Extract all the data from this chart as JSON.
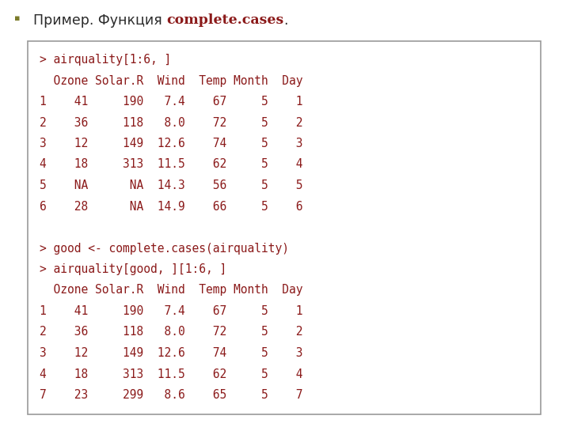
{
  "title_normal": "Пример. Функция ",
  "title_highlight": "complete.cases",
  "title_suffix": ".",
  "bullet_color": "#7B7B2A",
  "title_color": "#2B2B2B",
  "highlight_color": "#8B1A1A",
  "code_color": "#8B1A1A",
  "box_bg": "#FFFFFF",
  "box_border": "#999999",
  "bg_color": "#FFFFFF",
  "code_lines": [
    "> airquality[1:6, ]",
    "  Ozone Solar.R  Wind  Temp Month  Day",
    "1    41     190   7.4    67     5    1",
    "2    36     118   8.0    72     5    2",
    "3    12     149  12.6    74     5    3",
    "4    18     313  11.5    62     5    4",
    "5    NA      NA  14.3    56     5    5",
    "6    28      NA  14.9    66     5    6",
    "",
    "> good <- complete.cases(airquality)",
    "> airquality[good, ][1:6, ]",
    "  Ozone Solar.R  Wind  Temp Month  Day",
    "1    41     190   7.4    67     5    1",
    "2    36     118   8.0    72     5    2",
    "3    12     149  12.6    74     5    3",
    "4    18     313  11.5    62     5    4",
    "7    23     299   8.6    65     5    7"
  ],
  "font_size_title": 12.5,
  "font_size_code": 10.5,
  "bullet_size": 8,
  "fig_width": 7.2,
  "fig_height": 5.4,
  "dpi": 100
}
